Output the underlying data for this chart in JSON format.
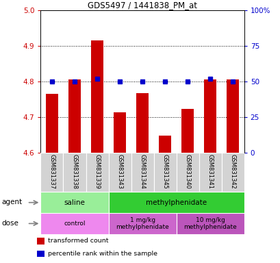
{
  "title": "GDS5497 / 1441838_PM_at",
  "samples": [
    "GSM831337",
    "GSM831338",
    "GSM831339",
    "GSM831343",
    "GSM831344",
    "GSM831345",
    "GSM831340",
    "GSM831341",
    "GSM831342"
  ],
  "red_values": [
    4.765,
    4.805,
    4.915,
    4.713,
    4.768,
    4.647,
    4.723,
    4.805,
    4.805
  ],
  "blue_values": [
    50,
    50,
    52,
    50,
    50,
    50,
    50,
    52,
    50
  ],
  "ylim_left": [
    4.6,
    5.0
  ],
  "ylim_right": [
    0,
    100
  ],
  "yticks_left": [
    4.6,
    4.7,
    4.8,
    4.9,
    5.0
  ],
  "yticks_right": [
    0,
    25,
    50,
    75,
    100
  ],
  "ytick_labels_right": [
    "0",
    "25",
    "50",
    "75",
    "100%"
  ],
  "bar_color": "#cc0000",
  "dot_color": "#0000cc",
  "bar_bottom": 4.6,
  "agent_groups": [
    {
      "label": "saline",
      "start": 0,
      "end": 3,
      "color": "#99ee99"
    },
    {
      "label": "methylphenidate",
      "start": 3,
      "end": 9,
      "color": "#33cc33"
    }
  ],
  "dose_groups": [
    {
      "label": "control",
      "start": 0,
      "end": 3,
      "color": "#ee88ee"
    },
    {
      "label": "1 mg/kg\nmethylphenidate",
      "start": 3,
      "end": 6,
      "color": "#cc66cc"
    },
    {
      "label": "10 mg/kg\nmethylphenidate",
      "start": 6,
      "end": 9,
      "color": "#bb55bb"
    }
  ],
  "legend_items": [
    {
      "color": "#cc0000",
      "label": "transformed count"
    },
    {
      "color": "#0000cc",
      "label": "percentile rank within the sample"
    }
  ],
  "grid_color": "black",
  "tick_color_left": "#cc0000",
  "tick_color_right": "#0000cc",
  "label_bg_color": "#d3d3d3",
  "agent_label": "agent",
  "dose_label": "dose"
}
